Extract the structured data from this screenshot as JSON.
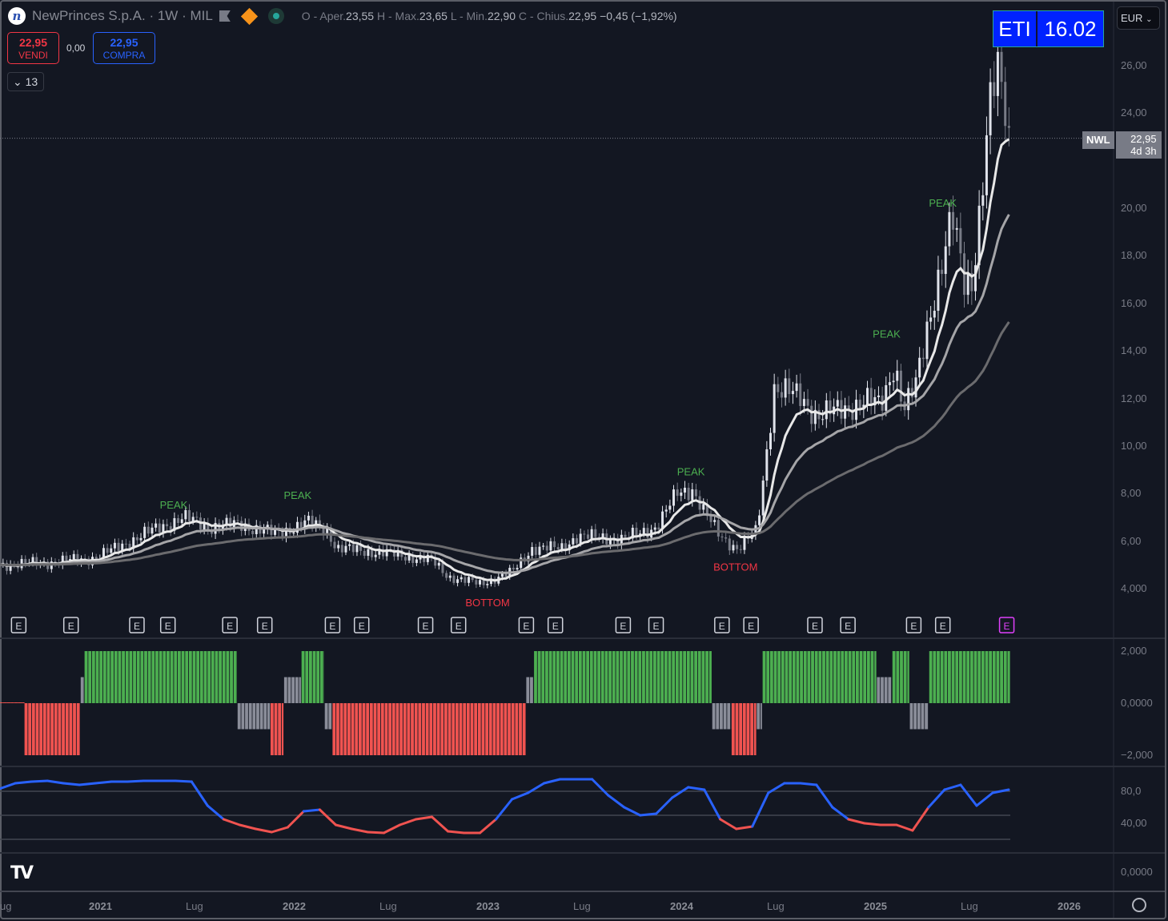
{
  "header": {
    "title": "NewPrinces S.p.A.",
    "interval": "1W",
    "exchange": "MIL",
    "o_label": "O - Aper.",
    "o": "23,55",
    "h_label": "H - Max.",
    "h": "23,65",
    "l_label": "L - Min.",
    "l": "22,90",
    "c_label": "C - Chius.",
    "c": "22,95",
    "change": "−0,45 (−1,92%)"
  },
  "trade": {
    "sell_price": "22,95",
    "sell_label": "VENDI",
    "spread": "0,00",
    "buy_price": "22,95",
    "buy_label": "COMPRA"
  },
  "indicators_count": "13",
  "eti": {
    "label": "ETI",
    "value": "16.02"
  },
  "currency": "EUR",
  "price_tag": {
    "symbol": "NWL",
    "price": "22,95",
    "countdown": "4d 3h"
  },
  "price_axis": [
    "26,00",
    "24,00",
    "20,00",
    "18,00",
    "16,00",
    "14,00",
    "12,00",
    "10,00",
    "8,00",
    "6,00",
    "4,000"
  ],
  "hist_axis": [
    "2,000",
    "0,0000",
    "−2,000"
  ],
  "osc_axis": [
    "80,0",
    "40,00"
  ],
  "empty_axis": "0,0000",
  "time_axis": [
    {
      "t": "ug",
      "y": false
    },
    {
      "t": "2021",
      "y": true
    },
    {
      "t": "Lug",
      "y": false
    },
    {
      "t": "2022",
      "y": true
    },
    {
      "t": "Lug",
      "y": false
    },
    {
      "t": "2023",
      "y": true
    },
    {
      "t": "Lug",
      "y": false
    },
    {
      "t": "2024",
      "y": true
    },
    {
      "t": "Lug",
      "y": false
    },
    {
      "t": "2025",
      "y": true
    },
    {
      "t": "Lug",
      "y": false
    },
    {
      "t": "2026",
      "y": true
    }
  ],
  "colors": {
    "up": "#e0e3eb",
    "down": "#787b86",
    "green": "#4caf50",
    "red": "#f05350",
    "gray": "#8a8d99",
    "blue": "#2962ff",
    "peak": "#4caf50",
    "bottom": "#f23645",
    "earnings": "#d1d4dc",
    "earnings_next": "#e040fb"
  },
  "chart_data": {
    "type": "candlestick",
    "ylim": [
      3,
      27
    ],
    "price_keypoints": [
      [
        2020.48,
        5.0
      ],
      [
        2020.73,
        5.1
      ],
      [
        2020.98,
        5.3
      ],
      [
        2021.23,
        6.3
      ],
      [
        2021.43,
        7.0
      ],
      [
        2021.56,
        6.6
      ],
      [
        2021.72,
        6.7
      ],
      [
        2021.91,
        6.3
      ],
      [
        2022.07,
        6.8
      ],
      [
        2022.18,
        6.4
      ],
      [
        2022.22,
        5.7
      ],
      [
        2022.47,
        5.5
      ],
      [
        2022.71,
        5.2
      ],
      [
        2022.8,
        4.5
      ],
      [
        2022.96,
        4.2
      ],
      [
        2023.13,
        4.7
      ],
      [
        2023.23,
        5.7
      ],
      [
        2023.38,
        5.7
      ],
      [
        2023.46,
        6.2
      ],
      [
        2023.71,
        6.1
      ],
      [
        2023.87,
        6.6
      ],
      [
        2023.98,
        8.0
      ],
      [
        2024.06,
        8.2
      ],
      [
        2024.12,
        7.2
      ],
      [
        2024.2,
        6.2
      ],
      [
        2024.29,
        5.7
      ],
      [
        2024.39,
        6.4
      ],
      [
        2024.43,
        9.0
      ],
      [
        2024.48,
        12.5
      ],
      [
        2024.62,
        12.0
      ],
      [
        2024.7,
        11.3
      ],
      [
        2024.82,
        11.5
      ],
      [
        2024.95,
        11.9
      ],
      [
        2025.03,
        11.7
      ],
      [
        2025.1,
        13.5
      ],
      [
        2025.15,
        11.5
      ],
      [
        2025.21,
        12.5
      ],
      [
        2025.28,
        15.5
      ],
      [
        2025.34,
        17.5
      ],
      [
        2025.4,
        19.5
      ],
      [
        2025.46,
        17.0
      ],
      [
        2025.5,
        17.0
      ],
      [
        2025.55,
        20.5
      ],
      [
        2025.59,
        24.0
      ],
      [
        2025.63,
        25.8
      ],
      [
        2025.67,
        24.5
      ],
      [
        2025.7,
        22.95
      ]
    ],
    "moving_averages": [
      {
        "name": "fast",
        "period": 10,
        "color": "#e8e8e8"
      },
      {
        "name": "medium",
        "period": 26,
        "color": "#a5a5a8"
      },
      {
        "name": "slow",
        "period": 70,
        "color": "#6b6b6e"
      }
    ],
    "annotations": [
      {
        "text": "PEAK",
        "t": 2021.38,
        "price": 7.1
      },
      {
        "text": "PEAK",
        "t": 2022.02,
        "price": 7.5
      },
      {
        "text": "BOTTOM",
        "t": 2023.0,
        "price": 4.0
      },
      {
        "text": "PEAK",
        "t": 2024.05,
        "price": 8.5
      },
      {
        "text": "BOTTOM",
        "t": 2024.28,
        "price": 5.5
      },
      {
        "text": "PEAK",
        "t": 2025.06,
        "price": 14.3
      },
      {
        "text": "PEAK",
        "t": 2025.35,
        "price": 19.8
      }
    ],
    "earnings": [
      2020.58,
      2020.85,
      2021.19,
      2021.35,
      2021.67,
      2021.85,
      2022.2,
      2022.35,
      2022.68,
      2022.85,
      2023.2,
      2023.35,
      2023.7,
      2023.87,
      2024.21,
      2024.36,
      2024.69,
      2024.86,
      2025.2,
      2025.35,
      2025.68
    ],
    "histogram": {
      "bounds": [
        2020.48,
        2020.61,
        2020.9,
        2020.92,
        2021.71,
        2021.88,
        2021.95,
        2022.04,
        2022.16,
        2022.2,
        2023.2,
        2023.24,
        2024.16,
        2024.26,
        2024.39,
        2024.42,
        2025.01,
        2025.09,
        2025.18,
        2025.28,
        2025.7
      ],
      "values": [
        0,
        -2,
        1,
        2,
        -1,
        -2,
        1,
        2,
        -1,
        -2,
        1,
        2,
        -1,
        -2,
        -1,
        2,
        1,
        2,
        -1,
        2
      ],
      "ylim": [
        -2.4,
        2.4
      ]
    },
    "oscillator": {
      "t_start": 2020.48,
      "t_end": 2025.69,
      "levels": [
        80,
        50,
        20
      ],
      "values": [
        83,
        90,
        92,
        93,
        90,
        88,
        90,
        92,
        92,
        93,
        93,
        93,
        92,
        62,
        45,
        38,
        33,
        29,
        35,
        55,
        57,
        38,
        33,
        29,
        28,
        38,
        45,
        48,
        30,
        28,
        28,
        45,
        70,
        78,
        90,
        95,
        95,
        95,
        75,
        60,
        50,
        52,
        72,
        85,
        82,
        45,
        33,
        36,
        78,
        90,
        90,
        88,
        60,
        45,
        40,
        38,
        38,
        31,
        60,
        82,
        88,
        62,
        78,
        82
      ]
    }
  }
}
